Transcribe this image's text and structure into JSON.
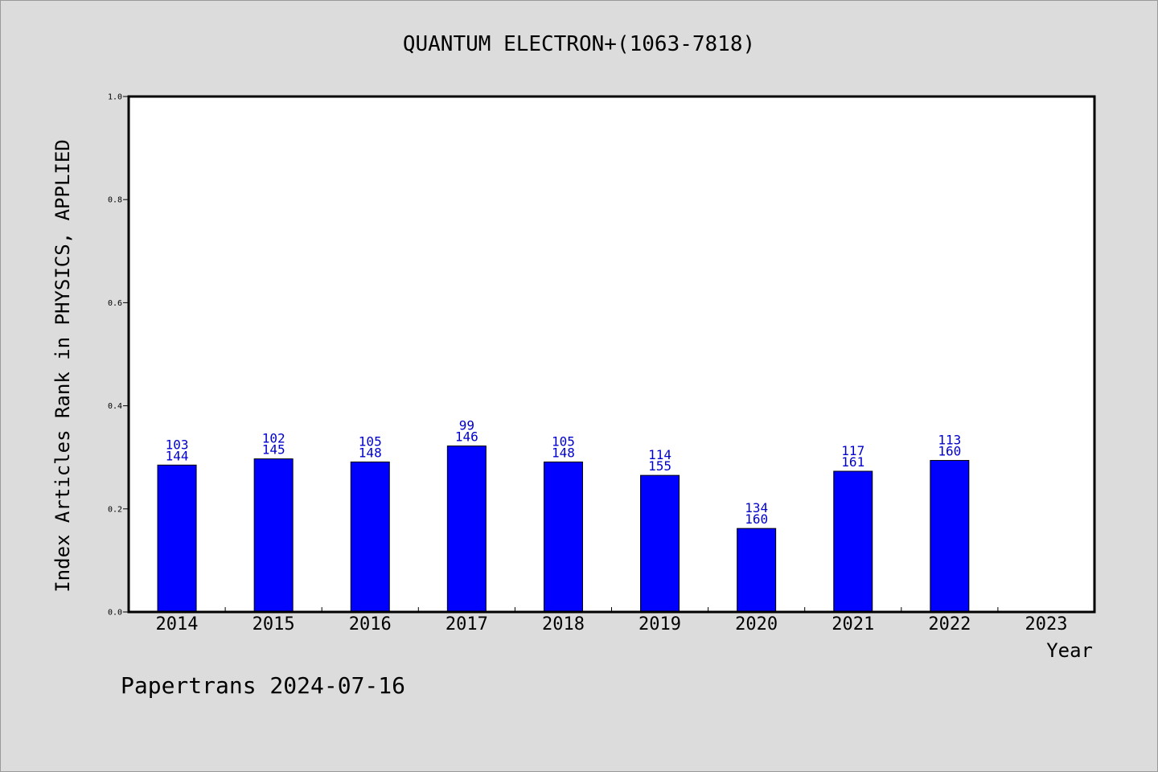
{
  "chart_data": {
    "type": "bar",
    "title": "QUANTUM ELECTRON+(1063-7818)",
    "xlabel": "Year",
    "ylabel": "Index Articles Rank in PHYSICS, APPLIED",
    "ylim": [
      0,
      1.0
    ],
    "yticks": [
      "0.0",
      "0.2",
      "0.4",
      "0.6",
      "0.8",
      "1.0"
    ],
    "categories": [
      "2014",
      "2015",
      "2016",
      "2017",
      "2018",
      "2019",
      "2020",
      "2021",
      "2022",
      "2023"
    ],
    "values": [
      0.285,
      0.297,
      0.291,
      0.322,
      0.291,
      0.265,
      0.162,
      0.273,
      0.294,
      null
    ],
    "labels_top": [
      "103",
      "102",
      "105",
      "99",
      "105",
      "114",
      "134",
      "117",
      "113",
      ""
    ],
    "labels_bottom": [
      "144",
      "145",
      "148",
      "146",
      "148",
      "155",
      "160",
      "161",
      "160",
      ""
    ],
    "bar_color": "#0000ff",
    "label_color": "#0000cc",
    "grid": false,
    "legend": "none"
  },
  "footer": "Papertrans 2024-07-16"
}
